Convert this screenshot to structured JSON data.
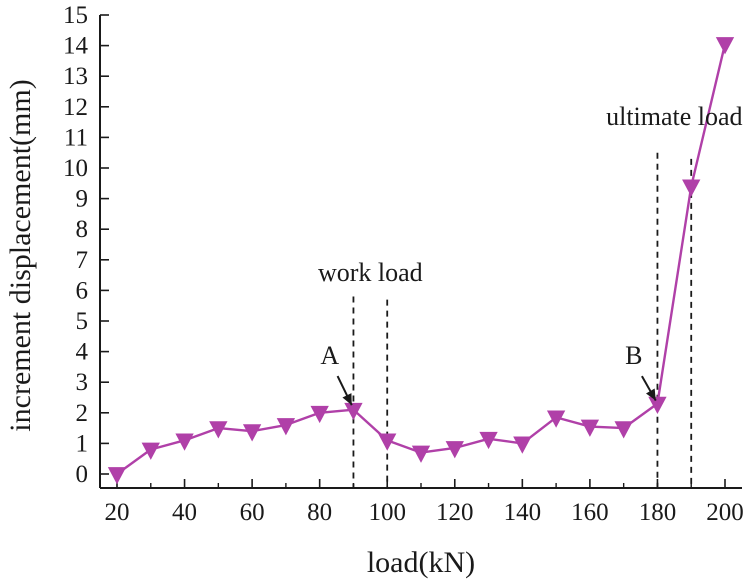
{
  "chart_data": {
    "type": "line",
    "xlabel": "load(kN)",
    "ylabel": "increment displacement(mm)",
    "xlim": [
      20,
      200
    ],
    "ylim": [
      0,
      15
    ],
    "xticks": [
      20,
      40,
      60,
      80,
      100,
      120,
      140,
      160,
      180,
      200
    ],
    "yticks": [
      0,
      1,
      2,
      3,
      4,
      5,
      6,
      7,
      8,
      9,
      10,
      11,
      12,
      13,
      14,
      15
    ],
    "series": [
      {
        "color": "#b040a8",
        "marker": "triangle-down",
        "x": [
          20,
          30,
          40,
          50,
          60,
          70,
          80,
          90,
          100,
          110,
          120,
          130,
          140,
          150,
          160,
          170,
          180,
          190,
          200
        ],
        "y": [
          0.0,
          0.8,
          1.1,
          1.5,
          1.4,
          1.6,
          2.0,
          2.1,
          1.1,
          0.7,
          0.85,
          1.15,
          1.0,
          1.85,
          1.55,
          1.5,
          2.3,
          9.4,
          14.05
        ]
      }
    ],
    "reference_lines": [
      {
        "x": 90,
        "y_top": 5.8
      },
      {
        "x": 100,
        "y_top": 5.7
      },
      {
        "x": 180,
        "y_top": 10.5
      },
      {
        "x": 190,
        "y_top": 10.3
      }
    ],
    "annotations": [
      {
        "text": "work load",
        "x": 95,
        "y": 6.3
      },
      {
        "text": "ultimate load",
        "x": 185,
        "y": 11.4
      },
      {
        "text": "A",
        "x": 83,
        "y": 3.6,
        "arrow_to": [
          89.5,
          2.25
        ],
        "arrow_from": [
          85.3,
          3.2
        ]
      },
      {
        "text": "B",
        "x": 173,
        "y": 3.6,
        "arrow_to": [
          179.5,
          2.4
        ],
        "arrow_from": [
          175.4,
          3.2
        ]
      }
    ],
    "grid": false
  }
}
